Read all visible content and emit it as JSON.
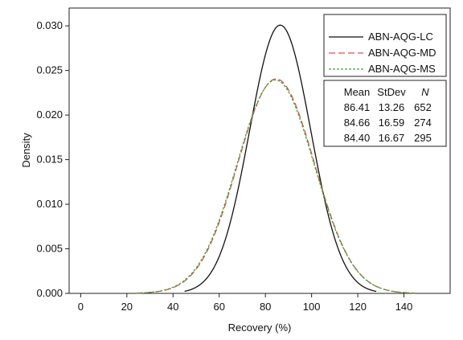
{
  "chart_data": {
    "type": "line",
    "xlabel": "Recovery (%)",
    "ylabel": "Density",
    "xlim": [
      -5,
      160
    ],
    "ylim": [
      0,
      0.032
    ],
    "x_ticks": [
      0,
      20,
      40,
      60,
      80,
      100,
      120,
      140
    ],
    "y_ticks": [
      0.0,
      0.005,
      0.01,
      0.015,
      0.02,
      0.025,
      0.03
    ],
    "y_tick_labels": [
      "0.000",
      "0.005",
      "0.010",
      "0.015",
      "0.020",
      "0.025",
      "0.030"
    ],
    "grid": false,
    "legend_position": "top-right",
    "series": [
      {
        "name": "ABN-AQG-LC",
        "mean": 86.41,
        "stdev": 13.26,
        "n": 652,
        "color": "#111111",
        "dash": "solid",
        "x_range": [
          45,
          128
        ]
      },
      {
        "name": "ABN-AQG-MD",
        "mean": 84.66,
        "stdev": 16.59,
        "n": 274,
        "color": "#e0504a",
        "dash": "dashed",
        "x_range": [
          24,
          145
        ]
      },
      {
        "name": "ABN-AQG-MS",
        "mean": 84.4,
        "stdev": 16.67,
        "n": 295,
        "color": "#3aa63a",
        "dash": "dotted",
        "x_range": [
          24,
          145
        ]
      }
    ],
    "stats_table": {
      "headers": [
        "Mean",
        "StDev",
        "N"
      ],
      "rows": [
        [
          "86.41",
          "13.26",
          "652"
        ],
        [
          "84.66",
          "16.59",
          "274"
        ],
        [
          "84.40",
          "16.67",
          "295"
        ]
      ]
    }
  }
}
